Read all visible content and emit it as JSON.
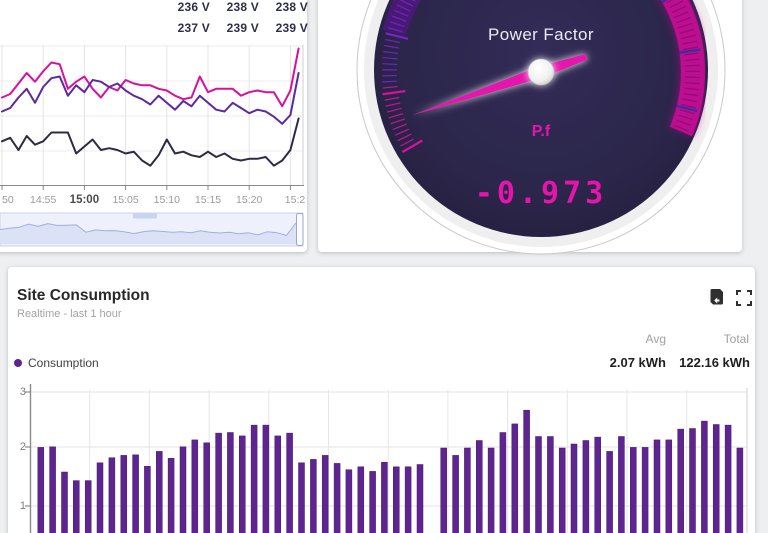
{
  "voltage_widget": {
    "legend": {
      "columns": [
        {
          "top": "236 V",
          "bottom": "237 V"
        },
        {
          "top": "238 V",
          "bottom": "239 V"
        },
        {
          "top": "238 V",
          "bottom": "239 V"
        }
      ]
    },
    "x_tick_labels": [
      "50",
      "14:55",
      "15:00",
      "15:05",
      "15:10",
      "15:15",
      "15:20",
      "15:2"
    ],
    "bold_tick_index": 2,
    "navigator_points": [
      0.5,
      0.45,
      0.42,
      0.3,
      0.38,
      0.28,
      0.35,
      0.34,
      0.33,
      0.6,
      0.52,
      0.55,
      0.54,
      0.58,
      0.65,
      0.58,
      0.55,
      0.57,
      0.6,
      0.58,
      0.62,
      0.55,
      0.6,
      0.63,
      0.6,
      0.66,
      0.62,
      0.7,
      0.58,
      0.62,
      0.72,
      0.25
    ]
  },
  "gauge_widget": {
    "title": "Power Factor",
    "label": "P.f",
    "value": "-0.973",
    "needle_angle_deg": 161.5,
    "colors": {
      "face": "#2a2548",
      "face_center": "#332c58",
      "face_edge": "#241f3e",
      "tick_magenta": "#d5129f",
      "tick_purple": "#7a22cc",
      "band_magenta": "#c00e92",
      "band_dark_purple": "#4c1a7a",
      "tick_on_band": "#8f0a70",
      "tick_indigo": "#3b2f9e",
      "needle": "#e415ab",
      "rim": "#efefef"
    }
  },
  "consumption_widget": {
    "title": "Site Consumption",
    "subtitle": "Realtime - last 1 hour",
    "avg_header": "Avg",
    "total_header": "Total",
    "avg_value": "2.07 kWh",
    "total_value": "122.16 kWh",
    "legend_label": "Consumption",
    "legend_color": "#5e2490",
    "y_ticks": [
      "3",
      "2",
      "1"
    ],
    "icons": [
      "export-file-icon",
      "fullscreen-icon"
    ]
  },
  "chart_data": [
    {
      "type": "line",
      "title": "",
      "x_tick_labels": [
        "50",
        "14:55",
        "15:00",
        "15:05",
        "15:10",
        "15:15",
        "15:20",
        "15:2"
      ],
      "x_note": "time axis, 5-minute ticks, left edge cut off",
      "y_axis_visible": false,
      "unit": "V",
      "series": [
        {
          "name": "series-magenta",
          "color": "#d6119b",
          "values": [
            238.1,
            238.2,
            238.5,
            238.8,
            238.55,
            238.85,
            239.1,
            239.05,
            238.35,
            238.55,
            238.7,
            238.35,
            238.1,
            238.4,
            238.3,
            238.6,
            238.5,
            238.45,
            238.45,
            238.35,
            238.3,
            238.15,
            238.05,
            238.1,
            238.7,
            238.25,
            238.35,
            238.35,
            238.35,
            238.15,
            238.25,
            238.3,
            238.25,
            238.25,
            237.85,
            238.3,
            239.5
          ]
        },
        {
          "name": "series-purple",
          "color": "#5b2aa0",
          "values": [
            237.7,
            237.8,
            238.1,
            238.35,
            237.95,
            238.4,
            238.65,
            238.7,
            238.15,
            238.45,
            238.25,
            238.6,
            238.55,
            238.4,
            238.5,
            238.3,
            238.15,
            238.05,
            237.9,
            238.15,
            237.95,
            237.75,
            238.0,
            237.85,
            238.15,
            237.95,
            237.75,
            237.7,
            237.95,
            237.8,
            237.65,
            237.75,
            237.7,
            237.55,
            237.35,
            237.6,
            238.8
          ]
        },
        {
          "name": "series-navy",
          "color": "#2c2b47",
          "values": [
            236.85,
            236.95,
            236.6,
            237.0,
            236.75,
            236.85,
            237.1,
            237.1,
            237.1,
            236.5,
            236.7,
            236.9,
            236.6,
            236.65,
            236.6,
            236.5,
            236.55,
            236.3,
            236.15,
            236.45,
            236.9,
            236.5,
            236.55,
            236.45,
            236.4,
            236.55,
            236.4,
            236.5,
            236.35,
            236.3,
            236.35,
            236.35,
            236.4,
            236.15,
            236.3,
            236.6,
            237.5
          ]
        }
      ]
    },
    {
      "type": "gauge",
      "title": "Power Factor",
      "label": "P.f",
      "value": -0.973
    },
    {
      "type": "bar",
      "title": "Site Consumption",
      "series": [
        {
          "name": "Consumption",
          "color": "#5e2490",
          "values": [
            2.03,
            2.04,
            1.6,
            1.45,
            1.45,
            1.76,
            1.85,
            1.89,
            1.9,
            1.7,
            1.96,
            1.84,
            2.04,
            2.16,
            2.11,
            2.28,
            2.29,
            2.23,
            2.42,
            2.42,
            2.23,
            2.28,
            1.76,
            1.82,
            1.89,
            1.75,
            1.64,
            1.69,
            1.61,
            1.77,
            1.69,
            1.69,
            1.73,
            null,
            2.02,
            1.89,
            2.02,
            2.15,
            2.02,
            2.29,
            2.44,
            2.68,
            2.22,
            2.22,
            2.02,
            2.09,
            2.15,
            2.21,
            1.96,
            2.22,
            2.03,
            2.03,
            2.16,
            2.16,
            2.35,
            2.36,
            2.49,
            2.43,
            2.42,
            2.02
          ]
        }
      ],
      "ylabel": "",
      "ylim": [
        0,
        3
      ],
      "y_ticks_visible": [
        "3",
        "2",
        "1"
      ],
      "avg": "2.07 kWh",
      "total": "122.16 kWh",
      "x_axis_note": "x labels below visible area (cut off)"
    }
  ]
}
